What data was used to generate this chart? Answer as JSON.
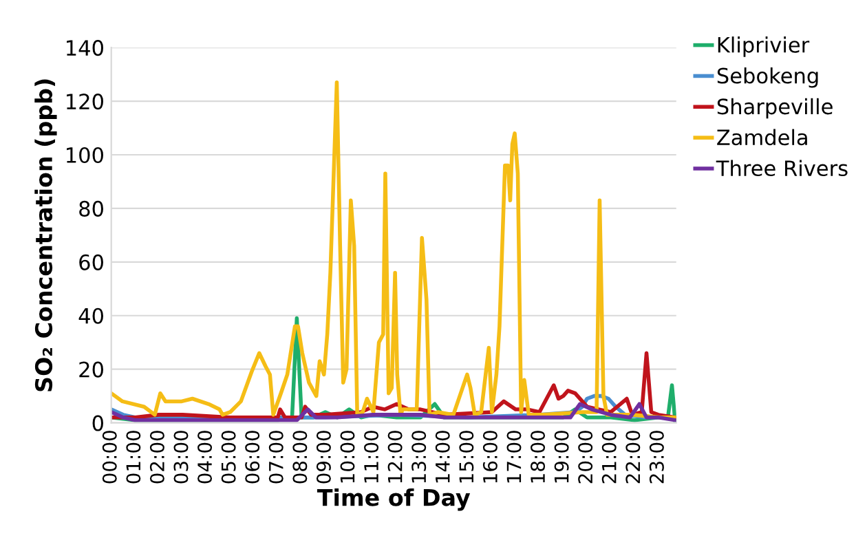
{
  "chart_data": {
    "type": "line",
    "xlabel": "Time of Day",
    "ylabel": "SO₂ Concentration (ppb)",
    "xlim": [
      0,
      23.75
    ],
    "ylim": [
      0,
      140
    ],
    "yticks": [
      0,
      20,
      40,
      60,
      80,
      100,
      120,
      140
    ],
    "xticks": [
      {
        "value": 0,
        "label": "00:00"
      },
      {
        "value": 1,
        "label": "01:00"
      },
      {
        "value": 2,
        "label": "02:00"
      },
      {
        "value": 3,
        "label": "03:00"
      },
      {
        "value": 4,
        "label": "04:00"
      },
      {
        "value": 5,
        "label": "05:00"
      },
      {
        "value": 6,
        "label": "06:00"
      },
      {
        "value": 7,
        "label": "07:00"
      },
      {
        "value": 8,
        "label": "08:00"
      },
      {
        "value": 9,
        "label": "09:00"
      },
      {
        "value": 10,
        "label": "10:00"
      },
      {
        "value": 11,
        "label": "11:00"
      },
      {
        "value": 12,
        "label": "12:00"
      },
      {
        "value": 13,
        "label": "13:00"
      },
      {
        "value": 14,
        "label": "14:00"
      },
      {
        "value": 15,
        "label": "15:00"
      },
      {
        "value": 16,
        "label": "16:00"
      },
      {
        "value": 17,
        "label": "17:00"
      },
      {
        "value": 18,
        "label": "18:00"
      },
      {
        "value": 19,
        "label": "19:00"
      },
      {
        "value": 20,
        "label": "20:00"
      },
      {
        "value": 21,
        "label": "21:00"
      },
      {
        "value": 22,
        "label": "22:00"
      },
      {
        "value": 23,
        "label": "23:00"
      }
    ],
    "grid": "y",
    "legend": "top right",
    "marker": "none",
    "line_style": "solid",
    "series": [
      {
        "name": "Kliprivier",
        "color": "#1fae6b",
        "x": [
          0,
          1,
          5,
          7,
          7.6,
          7.8,
          8.0,
          8.5,
          9.0,
          9.5,
          10.0,
          10.5,
          11.0,
          12,
          13,
          13.6,
          14.0,
          15,
          17,
          19,
          19.5,
          20.0,
          21,
          22,
          23,
          23.4,
          23.57,
          23.7
        ],
        "values": [
          2,
          1,
          1,
          1,
          2,
          39,
          2,
          2,
          4,
          2,
          5,
          2,
          3,
          2,
          2,
          7,
          2,
          2,
          2,
          2,
          5,
          2,
          2,
          1,
          2,
          2,
          14,
          1
        ]
      },
      {
        "name": "Sebokeng",
        "color": "#4a8ed0",
        "x": [
          0,
          0.5,
          1,
          3,
          9,
          12,
          15,
          18,
          19.5,
          19.8,
          20.0,
          20.3,
          20.6,
          20.9,
          21.2,
          21.6,
          22.5,
          23.7
        ],
        "values": [
          5,
          3,
          2,
          2,
          2,
          3,
          2,
          3,
          4,
          6,
          9,
          10,
          10,
          9,
          6,
          3,
          2,
          2
        ]
      },
      {
        "name": "Sharpeville",
        "color": "#c0141c",
        "x": [
          0,
          1,
          2,
          3,
          5,
          7,
          7.1,
          7.3,
          8.0,
          8.15,
          8.4,
          9,
          10.5,
          11,
          11.5,
          12,
          12.5,
          13,
          14,
          16,
          16.5,
          17,
          17.5,
          18,
          18.6,
          18.8,
          19.0,
          19.2,
          19.5,
          20,
          20.5,
          21,
          21.67,
          21.9,
          22.3,
          22.5,
          22.7,
          23,
          23.7
        ],
        "values": [
          2,
          2,
          3,
          3,
          2,
          2,
          5,
          2,
          2,
          6,
          3,
          3,
          4,
          6,
          5,
          7,
          5,
          5,
          3,
          4,
          8,
          5,
          5,
          4,
          14,
          9,
          10,
          12,
          11,
          6,
          5,
          4,
          9,
          3,
          4,
          26,
          4,
          3,
          2
        ]
      },
      {
        "name": "Zamdela",
        "color": "#f5bd16",
        "x": [
          0,
          0.47,
          1.38,
          1.83,
          2.06,
          2.28,
          2.96,
          3.41,
          4.09,
          4.55,
          4.68,
          5.0,
          5.45,
          5.9,
          6.22,
          6.49,
          6.67,
          6.81,
          7.13,
          7.4,
          7.72,
          7.85,
          8.03,
          8.31,
          8.62,
          8.76,
          8.94,
          9.08,
          9.21,
          9.48,
          9.62,
          9.75,
          9.89,
          10.07,
          10.21,
          10.34,
          10.57,
          10.75,
          11.02,
          11.25,
          11.43,
          11.52,
          11.66,
          11.79,
          11.93,
          12.02,
          12.16,
          12.25,
          12.84,
          13.06,
          13.25,
          13.38,
          13.74,
          14.38,
          14.96,
          15.1,
          15.28,
          15.55,
          15.87,
          16.0,
          16.19,
          16.32,
          16.55,
          16.68,
          16.77,
          16.86,
          16.96,
          17.09,
          17.23,
          17.36,
          17.55,
          18.13,
          19.81,
          20.4,
          20.53,
          20.69,
          20.84,
          21.88,
          23.1,
          23.7
        ],
        "values": [
          11,
          8,
          6,
          3,
          11,
          8,
          8,
          9,
          7,
          5,
          3,
          4,
          8,
          19,
          26,
          21,
          18,
          3,
          11,
          18,
          36,
          36,
          26,
          15,
          10,
          23,
          18,
          33,
          56,
          127,
          66,
          15,
          20,
          83,
          66,
          3,
          4,
          9,
          4,
          30,
          33,
          93,
          11,
          13,
          56,
          18,
          3,
          5,
          5,
          69,
          46,
          3,
          4,
          3,
          18,
          13,
          3,
          4,
          28,
          4,
          18,
          36,
          96,
          96,
          83,
          104,
          108,
          93,
          4,
          16,
          3,
          3,
          4,
          4,
          83,
          10,
          3,
          3,
          2,
          2
        ]
      },
      {
        "name": "Three Rivers",
        "color": "#7030a0",
        "x": [
          0,
          0.5,
          1,
          3,
          5,
          7,
          7.8,
          8.26,
          8.6,
          9.5,
          11,
          12,
          13,
          14,
          16,
          18,
          19.3,
          19.7,
          20.2,
          21,
          21.8,
          22.2,
          22.5,
          23,
          23.7
        ],
        "values": [
          4,
          2,
          1,
          1,
          1,
          1,
          1,
          5,
          2,
          2,
          3,
          3,
          3,
          2,
          2,
          2,
          2,
          7,
          5,
          3,
          2,
          7,
          2,
          2,
          1
        ]
      }
    ]
  }
}
